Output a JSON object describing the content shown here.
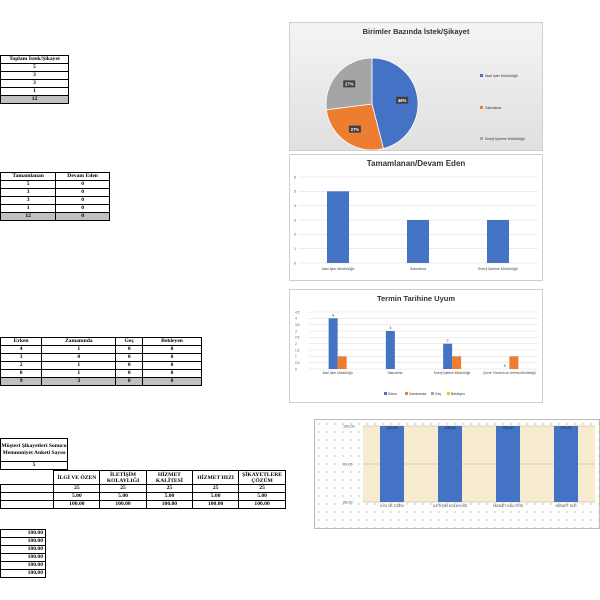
{
  "colors": {
    "blue": "#4472c4",
    "orange": "#ed7d31",
    "gray": "#a5a5a5",
    "yellow": "#ffc000",
    "total_row": "#c0c0c0"
  },
  "table1": {
    "header": "Toplam İstek/Şikayet",
    "values": [
      "5",
      "3",
      "3",
      "1"
    ],
    "total": "12"
  },
  "table2": {
    "headers": [
      "Tamamlanan",
      "Devam Eden"
    ],
    "rows": [
      [
        "5",
        "0"
      ],
      [
        "3",
        "0"
      ],
      [
        "3",
        "0"
      ],
      [
        "1",
        "0"
      ]
    ],
    "total": [
      "12",
      "0"
    ]
  },
  "table3": {
    "headers": [
      "Erken",
      "Zamanında",
      "Geç",
      "Bekleyen"
    ],
    "rows": [
      [
        "4",
        "1",
        "0",
        "0"
      ],
      [
        "3",
        "0",
        "0",
        "0"
      ],
      [
        "2",
        "1",
        "0",
        "0"
      ],
      [
        "0",
        "1",
        "0",
        "0"
      ]
    ],
    "total": [
      "9",
      "3",
      "0",
      "0"
    ]
  },
  "survey": {
    "title": "Müşteri Şikayetleri Sonucu Memnuniyet Anketi Sayısı",
    "count": "5",
    "columns": [
      "İLGİ VE ÖZEN",
      "İLETİŞİM KOLAYLIĞI",
      "HİZMET KALİTESİ",
      "HİZMET HIZI",
      "ŞİKAYETLERE ÇÖZÜM"
    ],
    "row1": [
      "25",
      "25",
      "25",
      "25",
      "25"
    ],
    "row2": [
      "5.00",
      "5.00",
      "5.00",
      "5.00",
      "5.00"
    ],
    "row3": [
      "100.00",
      "100.00",
      "100.00",
      "100.00",
      "100.00"
    ]
  },
  "list5": {
    "values": [
      "100.00",
      "100.00",
      "100.00",
      "100.00",
      "100.00"
    ],
    "total": "100,00"
  },
  "chart_data": [
    {
      "type": "pie",
      "title": "Birimler Bazında İstek/Şikayet",
      "labels": [
        "İdari İşler Müdürlüğü",
        "Satınalma",
        "Enerji İşletme Müdürlüğü"
      ],
      "values": [
        46,
        27,
        27
      ],
      "data_labels": [
        "46%",
        "27%",
        "27%"
      ],
      "legend": "right"
    },
    {
      "type": "bar",
      "title": "Tamamlanan/Devam Eden",
      "categories": [
        "İdari İşler Müdürlüğü",
        "Satınalma",
        "Enerji İşletme Müdürlüğü"
      ],
      "series": [
        {
          "values": [
            5,
            3,
            3
          ]
        }
      ],
      "ylim": [
        0,
        6
      ],
      "yticks": [
        "0",
        "1",
        "2",
        "3",
        "4",
        "5",
        "6"
      ],
      "grid": true
    },
    {
      "type": "bar",
      "title": "Termin Tarihine Uyum",
      "categories": [
        "İdari İşler Müdürlüğü",
        "Satınalma",
        "Enerji İşletme Müdürlüğü",
        "Çevre Yönetim ve Arıtma Müdürlüğü"
      ],
      "series": [
        {
          "name": "Erken",
          "values": [
            4,
            3,
            2,
            0
          ]
        },
        {
          "name": "Zamanında",
          "values": [
            1,
            0,
            1,
            1
          ]
        },
        {
          "name": "Geç",
          "values": [
            0,
            0,
            0,
            0
          ]
        },
        {
          "name": "Bekleyen",
          "values": [
            0,
            0,
            0,
            0
          ]
        }
      ],
      "data_labels": [
        "4",
        "3",
        "2",
        "0"
      ],
      "ylim": [
        0,
        4.5
      ],
      "yticks": [
        "0",
        "0,5",
        "1",
        "1,5",
        "2",
        "2,5",
        "3",
        "3,5",
        "4",
        "4,5"
      ],
      "legend": "bottom",
      "grid": true
    },
    {
      "type": "bar",
      "categories": [
        "İLGİ VE ÖZEN",
        "İLETİŞİM KOLAYLIĞI",
        "HİZMET KALİTESİ",
        "HİZMET HIZI"
      ],
      "series": [
        {
          "values": [
            100,
            100,
            100,
            100
          ]
        }
      ],
      "data_labels": [
        "100,00",
        "100,00",
        "100,00",
        "100,00"
      ],
      "ylim": [
        98,
        100
      ],
      "yticks": [
        "98,00",
        "99,00",
        "100,00"
      ],
      "grid": true
    }
  ]
}
